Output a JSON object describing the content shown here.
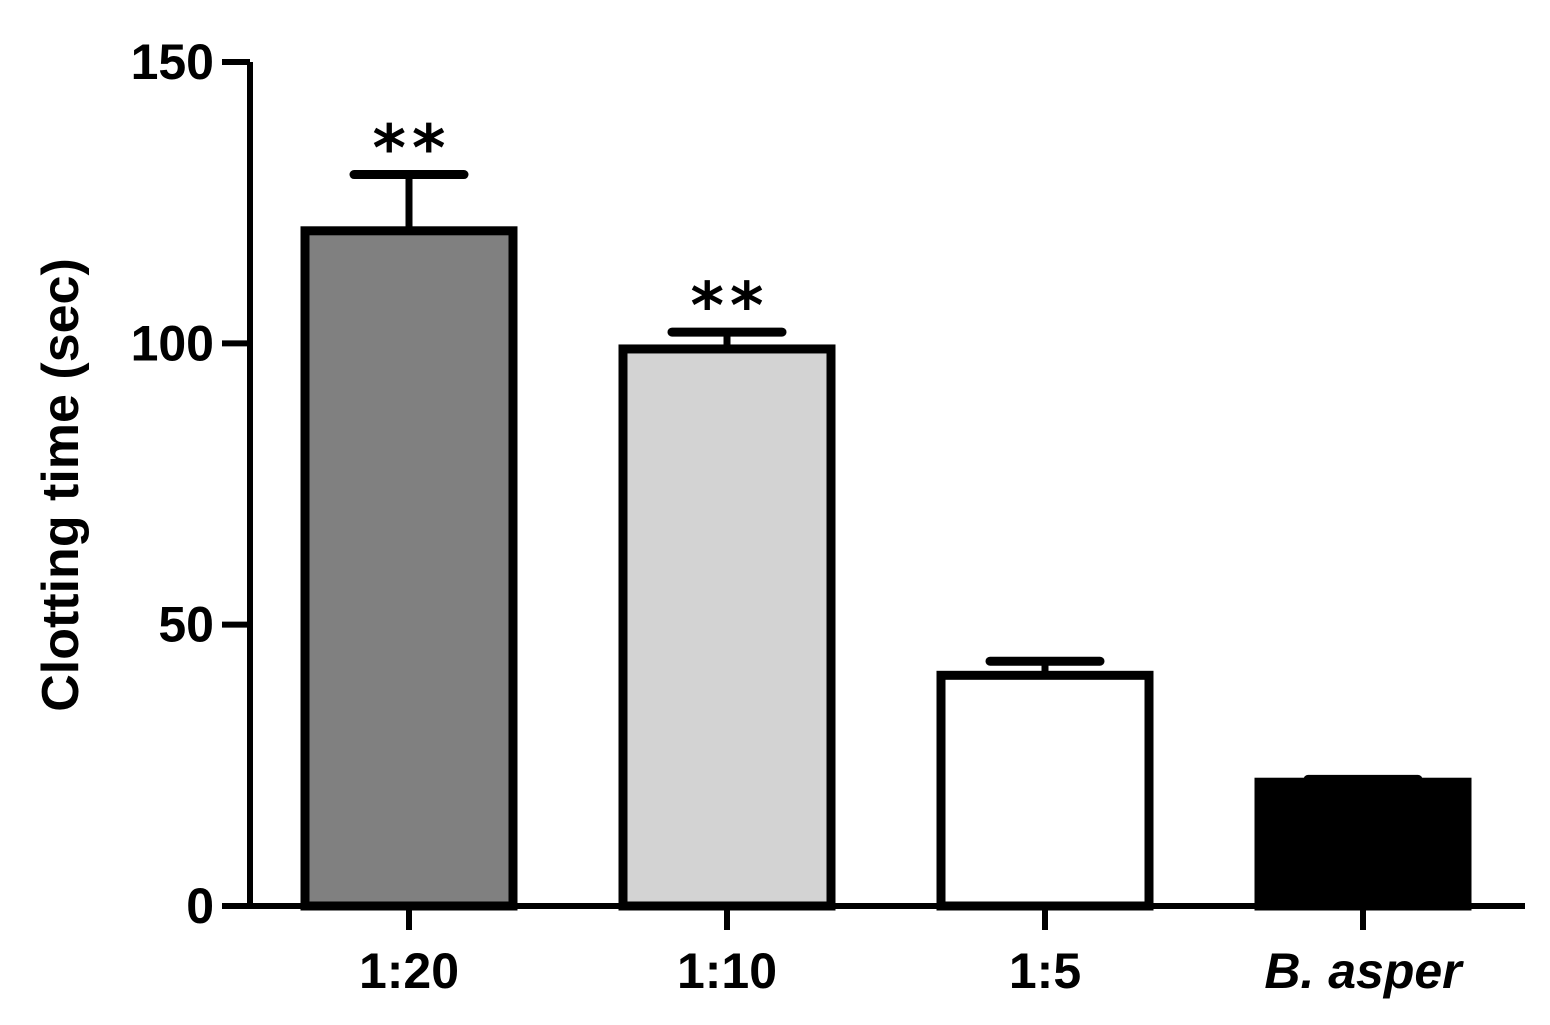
{
  "chart_data": {
    "type": "bar",
    "categories": [
      "1:20",
      "1:10",
      "1:5",
      "B. asper"
    ],
    "category_italic": [
      false,
      false,
      false,
      true
    ],
    "values": [
      120,
      99,
      41,
      22
    ],
    "errors": [
      10,
      3,
      2.5,
      0.5
    ],
    "significance": [
      "**",
      "**",
      "",
      ""
    ],
    "bar_colors": [
      "#808080",
      "#d3d3d3",
      "#ffffff",
      "#000000"
    ],
    "title": "",
    "xlabel": "",
    "ylabel": "Clotting time  (sec)",
    "ylim": [
      0,
      150
    ],
    "yticks": [
      0,
      50,
      100,
      150
    ],
    "grid": false,
    "legend": "none"
  }
}
